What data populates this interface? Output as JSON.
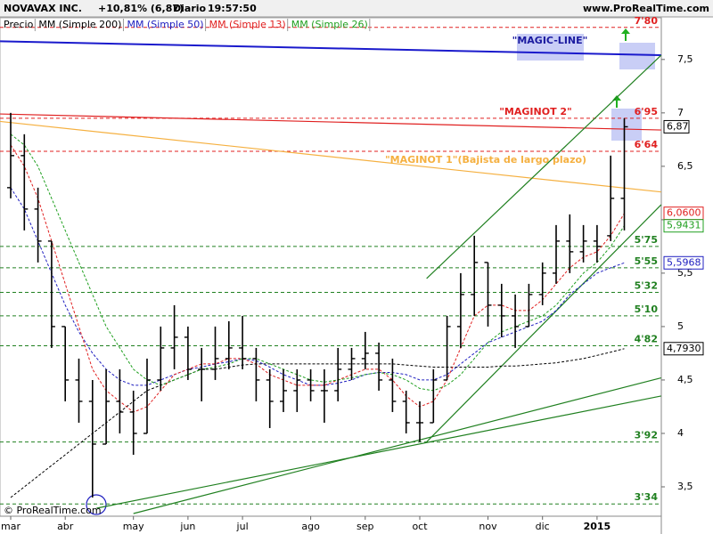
{
  "header": {
    "title": "NOVAVAX INC.",
    "change": "+10,81% (6,87)",
    "period": "Diario",
    "time": "19:57:50",
    "site": "www.ProRealTime.com",
    "copyright": "© ProRealTime.com"
  },
  "chart_data": {
    "type": "ohlc",
    "categories": [
      "mar",
      null,
      null,
      null,
      "abr",
      null,
      null,
      null,
      null,
      "may",
      null,
      null,
      null,
      "jun",
      null,
      null,
      null,
      "jul",
      null,
      null,
      null,
      null,
      "ago",
      null,
      null,
      null,
      "sep",
      null,
      null,
      null,
      "oct",
      null,
      null,
      null,
      null,
      "nov",
      null,
      null,
      null,
      "dic",
      null,
      null,
      null,
      "2015",
      null,
      null
    ],
    "ylim": [
      3.225,
      7.89
    ],
    "yticks": [
      {
        "value": 3.5,
        "label": "3,5"
      },
      4,
      {
        "value": 4.5,
        "label": "4,5"
      },
      5,
      {
        "value": 5.5,
        "label": "5,5"
      },
      6,
      {
        "value": 6.5,
        "label": "6,5"
      },
      7,
      {
        "value": 7.5,
        "label": "7,5"
      }
    ],
    "series": [
      {
        "name": "Precio",
        "color": "#000000",
        "open": [
          6.3,
          6.6,
          6.1,
          5.8,
          5.0,
          4.5,
          4.3,
          3.9,
          4.3,
          4.2,
          4.0,
          4.5,
          4.8,
          4.9,
          4.6,
          4.6,
          4.7,
          4.8,
          4.7,
          4.5,
          4.3,
          4.4,
          4.5,
          4.4,
          4.4,
          4.6,
          4.7,
          4.75,
          4.5,
          4.3,
          4.1,
          4.1,
          4.5,
          5.0,
          5.3,
          5.6,
          5.2,
          5.1,
          5.0,
          5.3,
          5.5,
          5.8,
          5.7,
          5.8,
          5.85,
          6.2
        ],
        "high": [
          7.0,
          6.8,
          6.3,
          5.8,
          5.0,
          4.7,
          4.5,
          4.6,
          4.6,
          4.4,
          4.7,
          5.0,
          5.2,
          5.0,
          4.8,
          5.0,
          5.05,
          5.1,
          4.8,
          4.6,
          4.6,
          4.6,
          4.6,
          4.6,
          4.8,
          4.8,
          4.95,
          4.85,
          4.7,
          4.4,
          4.3,
          4.6,
          5.1,
          5.5,
          5.85,
          5.6,
          5.4,
          5.3,
          5.4,
          5.6,
          5.95,
          6.05,
          5.95,
          5.95,
          6.6,
          6.95
        ],
        "low": [
          6.2,
          5.9,
          5.6,
          4.8,
          4.3,
          4.1,
          3.4,
          3.9,
          4.0,
          3.8,
          4.0,
          4.4,
          4.6,
          4.5,
          4.3,
          4.5,
          4.6,
          4.6,
          4.3,
          4.05,
          4.2,
          4.2,
          4.3,
          4.1,
          4.3,
          4.5,
          4.6,
          4.4,
          4.2,
          4.0,
          3.92,
          4.1,
          4.5,
          4.8,
          5.1,
          5.0,
          4.9,
          4.8,
          5.0,
          5.2,
          5.4,
          5.5,
          5.6,
          5.6,
          5.8,
          5.9
        ],
        "values": [
          6.6,
          6.1,
          5.8,
          5.0,
          4.5,
          4.3,
          3.9,
          4.3,
          4.2,
          4.0,
          4.5,
          4.8,
          4.9,
          4.6,
          4.6,
          4.7,
          4.8,
          4.7,
          4.5,
          4.3,
          4.4,
          4.5,
          4.4,
          4.4,
          4.6,
          4.7,
          4.75,
          4.5,
          4.3,
          4.1,
          4.1,
          4.5,
          5.0,
          5.3,
          5.6,
          5.2,
          5.1,
          5.0,
          5.3,
          5.5,
          5.8,
          5.7,
          5.8,
          5.75,
          6.2,
          6.87
        ],
        "value_labels": [
          null,
          null,
          null,
          null,
          null,
          null,
          null,
          null,
          null,
          null,
          null,
          null,
          null,
          null,
          null,
          null,
          null,
          null,
          null,
          null,
          null,
          null,
          null,
          null,
          null,
          null,
          null,
          null,
          null,
          null,
          null,
          null,
          null,
          null,
          null,
          null,
          null,
          null,
          null,
          null,
          null,
          null,
          null,
          null,
          null,
          "6,87"
        ]
      },
      {
        "name": "MM (Simple 200)",
        "color": "#000000",
        "values": [
          3.4,
          3.5,
          3.6,
          3.7,
          3.8,
          3.9,
          4.0,
          4.1,
          4.2,
          4.3,
          4.4,
          4.45,
          4.5,
          4.55,
          4.6,
          4.6,
          4.62,
          4.64,
          4.65,
          4.65,
          4.65,
          4.65,
          4.65,
          4.65,
          4.65,
          4.65,
          4.65,
          4.65,
          4.65,
          4.64,
          4.63,
          4.62,
          4.62,
          4.62,
          4.62,
          4.62,
          4.63,
          4.63,
          4.64,
          4.65,
          4.66,
          4.68,
          4.7,
          4.73,
          4.76,
          4.793
        ],
        "value_labels": [
          null,
          null,
          null,
          null,
          null,
          null,
          null,
          null,
          null,
          null,
          null,
          null,
          null,
          null,
          null,
          null,
          null,
          null,
          null,
          null,
          null,
          null,
          null,
          null,
          null,
          null,
          null,
          null,
          null,
          null,
          null,
          null,
          null,
          null,
          null,
          null,
          null,
          null,
          null,
          null,
          null,
          null,
          null,
          null,
          null,
          "4,7930"
        ]
      },
      {
        "name": "MM (Simple 50)",
        "color": "#2020c0",
        "values": [
          6.3,
          6.1,
          5.8,
          5.5,
          5.2,
          4.95,
          4.75,
          4.6,
          4.5,
          4.45,
          4.45,
          4.5,
          4.55,
          4.6,
          4.62,
          4.65,
          4.67,
          4.7,
          4.68,
          4.62,
          4.55,
          4.5,
          4.45,
          4.45,
          4.47,
          4.5,
          4.55,
          4.57,
          4.57,
          4.55,
          4.5,
          4.5,
          4.55,
          4.65,
          4.75,
          4.85,
          4.9,
          4.95,
          5.0,
          5.05,
          5.15,
          5.3,
          5.4,
          5.5,
          5.55,
          5.5968
        ],
        "value_labels": [
          null,
          null,
          null,
          null,
          null,
          null,
          null,
          null,
          null,
          null,
          null,
          null,
          null,
          null,
          null,
          null,
          null,
          null,
          null,
          null,
          null,
          null,
          null,
          null,
          null,
          null,
          null,
          null,
          null,
          null,
          null,
          null,
          null,
          null,
          null,
          null,
          null,
          null,
          null,
          null,
          null,
          null,
          null,
          null,
          null,
          "5,5968"
        ]
      },
      {
        "name": "MM (Simple 13)",
        "color": "#e02020",
        "values": [
          6.7,
          6.5,
          6.2,
          5.8,
          5.4,
          5.0,
          4.6,
          4.4,
          4.3,
          4.2,
          4.25,
          4.4,
          4.55,
          4.6,
          4.65,
          4.65,
          4.7,
          4.7,
          4.65,
          4.55,
          4.5,
          4.45,
          4.45,
          4.45,
          4.5,
          4.55,
          4.6,
          4.6,
          4.5,
          4.35,
          4.25,
          4.3,
          4.5,
          4.8,
          5.1,
          5.2,
          5.2,
          5.15,
          5.15,
          5.25,
          5.4,
          5.55,
          5.65,
          5.7,
          5.85,
          6.06
        ],
        "value_labels": [
          null,
          null,
          null,
          null,
          null,
          null,
          null,
          null,
          null,
          null,
          null,
          null,
          null,
          null,
          null,
          null,
          null,
          null,
          null,
          null,
          null,
          null,
          null,
          null,
          null,
          null,
          null,
          null,
          null,
          null,
          null,
          null,
          null,
          null,
          null,
          null,
          null,
          null,
          null,
          null,
          null,
          null,
          null,
          null,
          null,
          "6,0600"
        ]
      },
      {
        "name": "MM (Simple 26)",
        "color": "#20a020",
        "values": [
          6.8,
          6.7,
          6.5,
          6.2,
          5.9,
          5.6,
          5.3,
          5.0,
          4.8,
          4.6,
          4.5,
          4.45,
          4.5,
          4.55,
          4.6,
          4.62,
          4.65,
          4.7,
          4.7,
          4.65,
          4.6,
          4.55,
          4.5,
          4.48,
          4.5,
          4.52,
          4.55,
          4.57,
          4.55,
          4.5,
          4.42,
          4.4,
          4.45,
          4.55,
          4.7,
          4.85,
          4.95,
          5.0,
          5.05,
          5.1,
          5.2,
          5.35,
          5.5,
          5.6,
          5.75,
          5.9431
        ],
        "value_labels": [
          null,
          null,
          null,
          null,
          null,
          null,
          null,
          null,
          null,
          null,
          null,
          null,
          null,
          null,
          null,
          null,
          null,
          null,
          null,
          null,
          null,
          null,
          null,
          null,
          null,
          null,
          null,
          null,
          null,
          null,
          null,
          null,
          null,
          null,
          null,
          null,
          null,
          null,
          null,
          null,
          null,
          null,
          null,
          null,
          null,
          "5,9431"
        ]
      }
    ],
    "levels": [
      {
        "value": 7.8,
        "label": "7'80",
        "color": "#e02020"
      },
      {
        "value": 6.95,
        "label": "6'95",
        "color": "#e02020"
      },
      {
        "value": 6.64,
        "label": "6'64",
        "color": "#e02020"
      },
      {
        "value": 5.75,
        "label": "5'75",
        "color": "#208020"
      },
      {
        "value": 5.55,
        "label": "5'55",
        "color": "#208020"
      },
      {
        "value": 5.32,
        "label": "5'32",
        "color": "#208020"
      },
      {
        "value": 5.1,
        "label": "5'10",
        "color": "#208020"
      },
      {
        "value": 4.82,
        "label": "4'82",
        "color": "#208020"
      },
      {
        "value": 3.92,
        "label": "3'92",
        "color": "#208020"
      },
      {
        "value": 3.34,
        "label": "3'34",
        "color": "#208020"
      }
    ],
    "trendlines": [
      {
        "label": "\"MAGIC-LINE\"",
        "color": "#1a1acc",
        "x": [
          -0.78,
          47.7
        ],
        "values": [
          7.67,
          7.54
        ]
      },
      {
        "label": "\"MAGINOT 2\"",
        "color": "#e02020",
        "x": [
          -0.78,
          47.7
        ],
        "values": [
          6.99,
          6.84
        ]
      },
      {
        "label": "\"MAGINOT 1\"(Bajista de largo plazo)",
        "color": "#f5b040",
        "x": [
          -0.78,
          47.7
        ],
        "values": [
          6.92,
          6.26
        ]
      },
      {
        "color": "#208020",
        "x": [
          6.3,
          47.7
        ],
        "values": [
          3.3,
          4.35
        ]
      },
      {
        "color": "#208020",
        "x": [
          9,
          47.7
        ],
        "values": [
          3.25,
          4.52
        ]
      },
      {
        "color": "#208020",
        "x": [
          30.5,
          47.7
        ],
        "values": [
          3.92,
          6.14
        ]
      },
      {
        "color": "#208020",
        "x": [
          30.5,
          47.7
        ],
        "values": [
          5.45,
          7.54
        ]
      }
    ]
  }
}
